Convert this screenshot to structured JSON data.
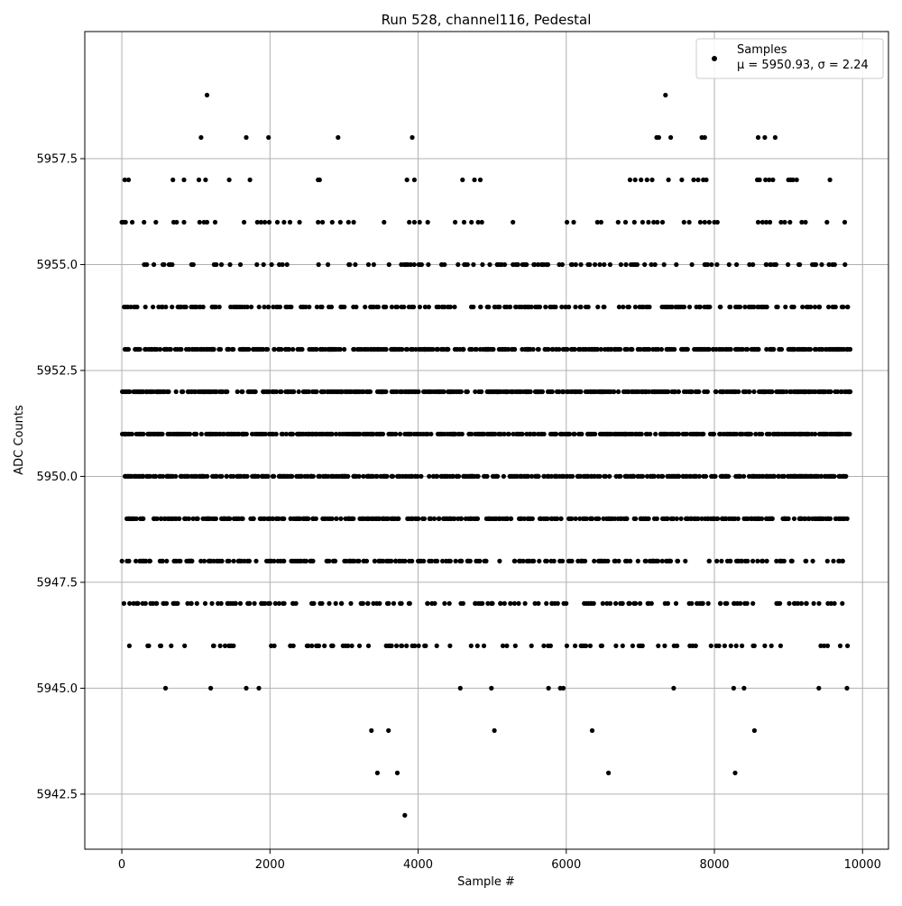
{
  "chart_data": {
    "type": "scatter",
    "title": "Run 528, channel116, Pedestal",
    "xlabel": "Sample #",
    "ylabel": "ADC Counts",
    "xlim": [
      -500,
      10350
    ],
    "ylim": [
      5941.2,
      5960.5
    ],
    "x_ticks": [
      {
        "value": 0,
        "label": "0"
      },
      {
        "value": 2000,
        "label": "2000"
      },
      {
        "value": 4000,
        "label": "4000"
      },
      {
        "value": 6000,
        "label": "6000"
      },
      {
        "value": 8000,
        "label": "8000"
      },
      {
        "value": 10000,
        "label": "10000"
      }
    ],
    "y_ticks": [
      {
        "value": 5942.5,
        "label": "5942.5"
      },
      {
        "value": 5945.0,
        "label": "5945.0"
      },
      {
        "value": 5947.5,
        "label": "5947.5"
      },
      {
        "value": 5950.0,
        "label": "5950.0"
      },
      {
        "value": 5952.5,
        "label": "5952.5"
      },
      {
        "value": 5955.0,
        "label": "5955.0"
      },
      {
        "value": 5957.5,
        "label": "5957.5"
      }
    ],
    "grid": true,
    "legend": {
      "position": "top-right",
      "entries": [
        {
          "label": "Samples",
          "stats": "μ = 5950.93, σ = 2.24"
        }
      ]
    },
    "marker_color": "#000000",
    "series": [
      {
        "name": "Samples",
        "points": [
          [
            1150,
            5959
          ],
          [
            7340,
            5959
          ],
          [
            1070,
            5958
          ],
          [
            1680,
            5958
          ],
          [
            1980,
            5958
          ],
          [
            2920,
            5958
          ],
          [
            3920,
            5958
          ],
          [
            7220,
            5958
          ],
          [
            7250,
            5958
          ],
          [
            7410,
            5958
          ],
          [
            7830,
            5958
          ],
          [
            7870,
            5958
          ],
          [
            8590,
            5958
          ],
          [
            8680,
            5958
          ],
          [
            8820,
            5958
          ],
          [
            40,
            5957
          ],
          [
            90,
            5957
          ],
          [
            690,
            5957
          ],
          [
            840,
            5957
          ],
          [
            1040,
            5957
          ],
          [
            1130,
            5957
          ],
          [
            1450,
            5957
          ],
          [
            1730,
            5957
          ],
          [
            2650,
            5957
          ],
          [
            2670,
            5957
          ],
          [
            3850,
            5957
          ],
          [
            3950,
            5957
          ],
          [
            4600,
            5957
          ],
          [
            4760,
            5957
          ],
          [
            4840,
            5957
          ],
          [
            6860,
            5957
          ],
          [
            6930,
            5957
          ],
          [
            7010,
            5957
          ],
          [
            7090,
            5957
          ],
          [
            7160,
            5957
          ],
          [
            7380,
            5957
          ],
          [
            7560,
            5957
          ],
          [
            7720,
            5957
          ],
          [
            7780,
            5957
          ],
          [
            7850,
            5957
          ],
          [
            7890,
            5957
          ],
          [
            8580,
            5957
          ],
          [
            8610,
            5957
          ],
          [
            8690,
            5957
          ],
          [
            8740,
            5957
          ],
          [
            8790,
            5957
          ],
          [
            9000,
            5957
          ],
          [
            9030,
            5957
          ],
          [
            9060,
            5957
          ],
          [
            9110,
            5957
          ],
          [
            9560,
            5957
          ],
          [
            0,
            5956
          ],
          [
            20,
            5956
          ],
          [
            50,
            5956
          ],
          [
            140,
            5956
          ],
          [
            300,
            5956
          ],
          [
            460,
            5956
          ],
          [
            700,
            5956
          ],
          [
            740,
            5956
          ],
          [
            840,
            5956
          ],
          [
            1050,
            5956
          ],
          [
            1110,
            5956
          ],
          [
            1150,
            5956
          ],
          [
            1260,
            5956
          ],
          [
            1650,
            5956
          ],
          [
            1830,
            5956
          ],
          [
            1880,
            5956
          ],
          [
            1930,
            5956
          ],
          [
            1990,
            5956
          ],
          [
            2100,
            5956
          ],
          [
            2190,
            5956
          ],
          [
            2270,
            5956
          ],
          [
            2400,
            5956
          ],
          [
            2650,
            5956
          ],
          [
            2710,
            5956
          ],
          [
            2840,
            5956
          ],
          [
            2950,
            5956
          ],
          [
            3060,
            5956
          ],
          [
            3130,
            5956
          ],
          [
            3540,
            5956
          ],
          [
            3880,
            5956
          ],
          [
            3950,
            5956
          ],
          [
            4020,
            5956
          ],
          [
            4130,
            5956
          ],
          [
            4500,
            5956
          ],
          [
            4620,
            5956
          ],
          [
            4720,
            5956
          ],
          [
            4810,
            5956
          ],
          [
            4860,
            5956
          ],
          [
            5280,
            5956
          ],
          [
            6010,
            5956
          ],
          [
            6100,
            5956
          ],
          [
            6420,
            5956
          ],
          [
            6470,
            5956
          ],
          [
            6700,
            5956
          ],
          [
            6800,
            5956
          ],
          [
            6920,
            5956
          ],
          [
            7030,
            5956
          ],
          [
            7110,
            5956
          ],
          [
            7180,
            5956
          ],
          [
            7230,
            5956
          ],
          [
            7300,
            5956
          ],
          [
            7590,
            5956
          ],
          [
            7660,
            5956
          ],
          [
            7810,
            5956
          ],
          [
            7870,
            5956
          ],
          [
            7930,
            5956
          ],
          [
            8000,
            5956
          ],
          [
            8040,
            5956
          ],
          [
            8590,
            5956
          ],
          [
            8650,
            5956
          ],
          [
            8700,
            5956
          ],
          [
            8750,
            5956
          ],
          [
            8900,
            5956
          ],
          [
            8950,
            5956
          ],
          [
            9020,
            5956
          ],
          [
            9180,
            5956
          ],
          [
            9230,
            5956
          ],
          [
            9520,
            5956
          ],
          [
            9760,
            5956
          ],
          [
            590,
            5945
          ],
          [
            1200,
            5945
          ],
          [
            1680,
            5945
          ],
          [
            1850,
            5945
          ],
          [
            4570,
            5945
          ],
          [
            4990,
            5945
          ],
          [
            5760,
            5945
          ],
          [
            5920,
            5945
          ],
          [
            5960,
            5945
          ],
          [
            7450,
            5945
          ],
          [
            8260,
            5945
          ],
          [
            8400,
            5945
          ],
          [
            9410,
            5945
          ],
          [
            9790,
            5945
          ],
          [
            3370,
            5944
          ],
          [
            3600,
            5944
          ],
          [
            5030,
            5944
          ],
          [
            6350,
            5944
          ],
          [
            8540,
            5944
          ],
          [
            3450,
            5943
          ],
          [
            3720,
            5943
          ],
          [
            6570,
            5943
          ],
          [
            8280,
            5943
          ],
          [
            3820,
            5942
          ]
        ],
        "bands": [
          {
            "y": 5955,
            "points": 125
          },
          {
            "y": 5954,
            "points": 240
          },
          {
            "y": 5953,
            "points": 470
          },
          {
            "y": 5952,
            "points": 520
          },
          {
            "y": 5951,
            "points": 520
          },
          {
            "y": 5950,
            "points": 470
          },
          {
            "y": 5949,
            "points": 400
          },
          {
            "y": 5948,
            "points": 250
          },
          {
            "y": 5947,
            "points": 170
          },
          {
            "y": 5946,
            "points": 100
          }
        ]
      }
    ]
  }
}
